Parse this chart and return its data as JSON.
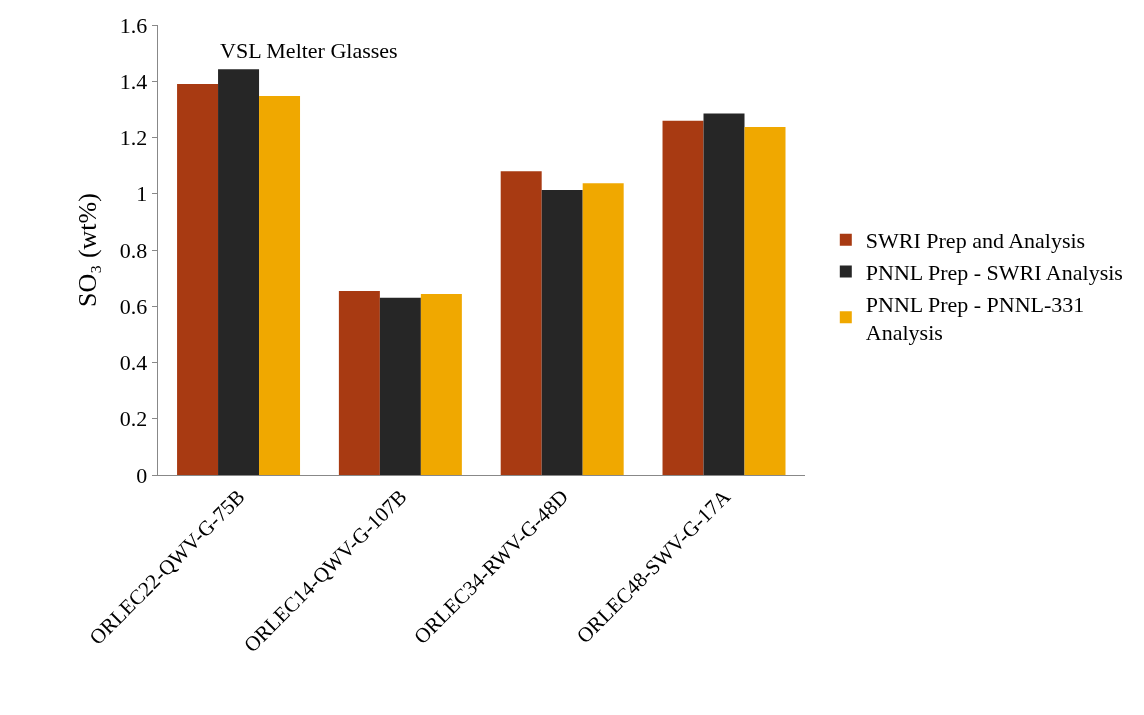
{
  "chart_data": {
    "type": "bar",
    "title": "VSL Melter Glasses",
    "ylabel": "SO₃ (wt%)",
    "categories": [
      "ORLEC22-QWV-G-75B",
      "ORLEC14-QWV-G-107B",
      "ORLEC34-RWV-G-48D",
      "ORLEC48-SWV-G-17A"
    ],
    "series": [
      {
        "name": "SWRI Prep and Analysis",
        "color": "#a83a12",
        "values": [
          1.39,
          0.654,
          1.08,
          1.26
        ]
      },
      {
        "name": "PNNL Prep - SWRI Analysis",
        "color": "#262626",
        "values": [
          1.443,
          0.63,
          1.013,
          1.285
        ]
      },
      {
        "name": "PNNL Prep - PNNL-331 Analysis",
        "color": "#f0a800",
        "values": [
          1.348,
          0.644,
          1.037,
          1.237
        ]
      }
    ],
    "ylim": [
      0,
      1.6
    ],
    "yticks": [
      0,
      0.2,
      0.4,
      0.6,
      0.8,
      1,
      1.2,
      1.4,
      1.6
    ],
    "legend": "right"
  }
}
